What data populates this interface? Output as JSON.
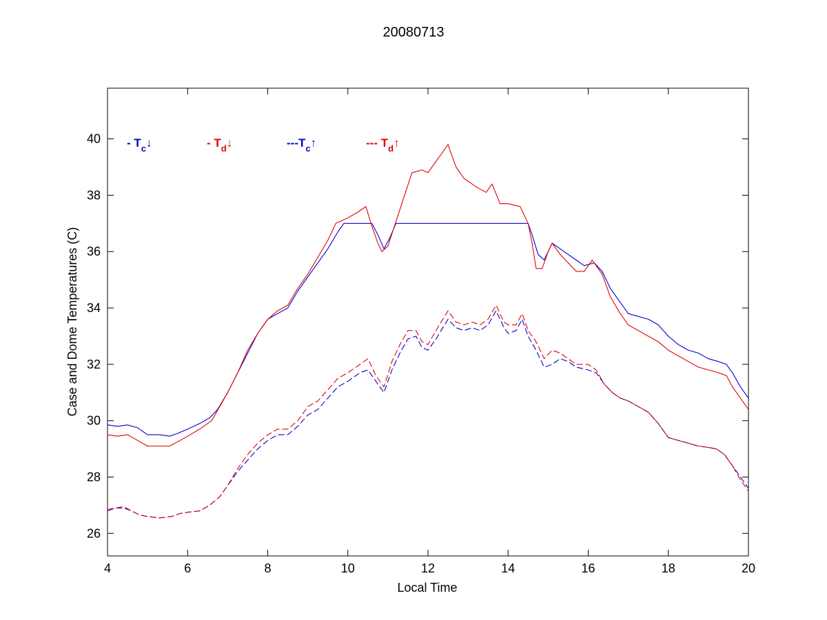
{
  "chart_data": {
    "type": "line",
    "title": "20080713",
    "xlabel": "Local Time",
    "ylabel": "Case and Dome Temperatures (C)",
    "xlim": [
      4,
      20
    ],
    "ylim": [
      25.2,
      41.8
    ],
    "xticks": [
      4,
      6,
      8,
      10,
      12,
      14,
      16,
      18,
      20
    ],
    "yticks": [
      26,
      28,
      30,
      32,
      34,
      36,
      38,
      40
    ],
    "grid": false,
    "legend_position": "top-left inside plot, single row",
    "series": [
      {
        "name": "Tc↓",
        "legend": {
          "prefix": "- ",
          "main": "T",
          "sub": "c",
          "arrow": "↓"
        },
        "color": "#0000cc",
        "style": "solid",
        "x": [
          4.0,
          4.25,
          4.5,
          4.75,
          5.0,
          5.3,
          5.55,
          5.75,
          6.0,
          6.3,
          6.55,
          6.75,
          7.0,
          7.25,
          7.5,
          7.75,
          8.0,
          8.25,
          8.5,
          8.75,
          9.0,
          9.25,
          9.5,
          9.75,
          9.9,
          10.15,
          10.6,
          10.75,
          10.9,
          11.05,
          11.2,
          12.0,
          13.0,
          14.0,
          14.5,
          14.6,
          14.75,
          14.9,
          15.1,
          15.3,
          15.5,
          15.7,
          15.9,
          16.15,
          16.35,
          16.55,
          16.8,
          17.0,
          17.25,
          17.5,
          17.75,
          18.0,
          18.25,
          18.5,
          18.75,
          19.0,
          19.25,
          19.45,
          19.6,
          19.8,
          20.0
        ],
        "y": [
          29.85,
          29.8,
          29.85,
          29.75,
          29.5,
          29.5,
          29.45,
          29.55,
          29.7,
          29.9,
          30.1,
          30.4,
          31.0,
          31.7,
          32.4,
          33.1,
          33.6,
          33.8,
          34.0,
          34.6,
          35.1,
          35.6,
          36.1,
          36.7,
          37.0,
          37.0,
          37.0,
          36.6,
          36.1,
          36.5,
          37.0,
          37.0,
          37.0,
          37.0,
          37.0,
          36.6,
          35.9,
          35.7,
          36.3,
          36.1,
          35.9,
          35.7,
          35.5,
          35.6,
          35.3,
          34.7,
          34.2,
          33.8,
          33.7,
          33.6,
          33.4,
          33.0,
          32.7,
          32.5,
          32.4,
          32.2,
          32.1,
          32.0,
          31.7,
          31.2,
          30.8
        ]
      },
      {
        "name": "Td↓",
        "legend": {
          "prefix": "- ",
          "main": "T",
          "sub": "d",
          "arrow": "↓"
        },
        "color": "#e00000",
        "style": "solid",
        "x": [
          4.0,
          4.25,
          4.5,
          4.75,
          5.0,
          5.3,
          5.55,
          5.75,
          6.0,
          6.3,
          6.6,
          6.8,
          7.0,
          7.25,
          7.5,
          7.75,
          8.0,
          8.25,
          8.5,
          8.75,
          9.0,
          9.25,
          9.5,
          9.7,
          10.0,
          10.25,
          10.45,
          10.6,
          10.75,
          10.85,
          11.0,
          11.3,
          11.6,
          11.85,
          12.0,
          12.5,
          12.7,
          12.9,
          13.2,
          13.45,
          13.6,
          13.8,
          14.0,
          14.3,
          14.5,
          14.6,
          14.7,
          14.85,
          15.0,
          15.1,
          15.3,
          15.5,
          15.7,
          15.9,
          16.1,
          16.35,
          16.55,
          16.8,
          17.0,
          17.25,
          17.5,
          17.75,
          18.0,
          18.25,
          18.5,
          18.75,
          19.0,
          19.25,
          19.45,
          19.6,
          19.8,
          20.0
        ],
        "y": [
          29.5,
          29.45,
          29.5,
          29.3,
          29.1,
          29.1,
          29.1,
          29.25,
          29.45,
          29.7,
          30.0,
          30.5,
          31.0,
          31.7,
          32.5,
          33.1,
          33.6,
          33.9,
          34.1,
          34.7,
          35.2,
          35.8,
          36.4,
          37.0,
          37.2,
          37.4,
          37.6,
          36.9,
          36.3,
          36.0,
          36.2,
          37.5,
          38.8,
          38.9,
          38.8,
          39.8,
          39.0,
          38.6,
          38.3,
          38.1,
          38.4,
          37.7,
          37.7,
          37.6,
          37.0,
          36.3,
          35.4,
          35.4,
          36.0,
          36.3,
          35.9,
          35.6,
          35.3,
          35.3,
          35.7,
          35.2,
          34.4,
          33.8,
          33.4,
          33.2,
          33.0,
          32.8,
          32.5,
          32.3,
          32.1,
          31.9,
          31.8,
          31.7,
          31.6,
          31.2,
          30.8,
          30.4
        ]
      },
      {
        "name": "Tc↑",
        "legend": {
          "prefix": "---",
          "main": "T",
          "sub": "c",
          "arrow": "↑"
        },
        "color": "#0000cc",
        "style": "dashed",
        "x": [
          4.0,
          4.2,
          4.4,
          4.6,
          4.8,
          5.0,
          5.3,
          5.6,
          5.8,
          6.0,
          6.3,
          6.55,
          6.8,
          7.0,
          7.25,
          7.5,
          7.75,
          8.0,
          8.25,
          8.5,
          8.75,
          9.0,
          9.25,
          9.5,
          9.75,
          10.0,
          10.3,
          10.5,
          10.7,
          10.9,
          11.1,
          11.3,
          11.5,
          11.7,
          11.85,
          12.0,
          12.2,
          12.5,
          12.7,
          12.9,
          13.1,
          13.3,
          13.5,
          13.7,
          13.9,
          14.0,
          14.2,
          14.35,
          14.5,
          14.7,
          14.9,
          15.1,
          15.3,
          15.5,
          15.7,
          16.0,
          16.2,
          16.4,
          16.6,
          16.8,
          17.0,
          17.25,
          17.5,
          17.75,
          18.0,
          18.25,
          18.5,
          18.75,
          19.0,
          19.2,
          19.4,
          19.6,
          19.8,
          20.0
        ],
        "y": [
          26.8,
          26.9,
          26.9,
          26.8,
          26.65,
          26.6,
          26.55,
          26.6,
          26.7,
          26.75,
          26.8,
          27.0,
          27.3,
          27.7,
          28.2,
          28.6,
          29.0,
          29.3,
          29.5,
          29.5,
          29.8,
          30.2,
          30.4,
          30.8,
          31.2,
          31.4,
          31.7,
          31.8,
          31.4,
          31.0,
          31.8,
          32.4,
          32.9,
          33.0,
          32.6,
          32.5,
          32.9,
          33.6,
          33.3,
          33.2,
          33.3,
          33.2,
          33.4,
          33.9,
          33.3,
          33.1,
          33.2,
          33.6,
          33.0,
          32.5,
          31.9,
          32.0,
          32.2,
          32.1,
          31.9,
          31.8,
          31.7,
          31.3,
          31.0,
          30.8,
          30.7,
          30.5,
          30.3,
          29.9,
          29.4,
          29.3,
          29.2,
          29.1,
          29.05,
          29.0,
          28.8,
          28.4,
          28.0,
          27.6
        ]
      },
      {
        "name": "Td↑",
        "legend": {
          "prefix": "--- ",
          "main": "T",
          "sub": "d",
          "arrow": "↑"
        },
        "color": "#e00000",
        "style": "dashed",
        "x": [
          4.0,
          4.2,
          4.4,
          4.6,
          4.8,
          5.0,
          5.3,
          5.6,
          5.8,
          6.0,
          6.3,
          6.55,
          6.8,
          7.0,
          7.25,
          7.5,
          7.75,
          8.0,
          8.25,
          8.5,
          8.75,
          9.0,
          9.25,
          9.5,
          9.75,
          10.0,
          10.3,
          10.5,
          10.7,
          10.9,
          11.1,
          11.3,
          11.5,
          11.7,
          11.85,
          12.0,
          12.2,
          12.5,
          12.7,
          12.9,
          13.1,
          13.3,
          13.5,
          13.7,
          13.9,
          14.0,
          14.2,
          14.35,
          14.5,
          14.7,
          14.9,
          15.1,
          15.3,
          15.5,
          15.7,
          16.0,
          16.2,
          16.4,
          16.6,
          16.8,
          17.0,
          17.25,
          17.5,
          17.75,
          18.0,
          18.25,
          18.5,
          18.75,
          19.0,
          19.2,
          19.4,
          19.6,
          19.8,
          20.0
        ],
        "y": [
          26.85,
          26.9,
          26.95,
          26.8,
          26.65,
          26.6,
          26.55,
          26.6,
          26.7,
          26.75,
          26.8,
          27.0,
          27.3,
          27.7,
          28.3,
          28.8,
          29.2,
          29.5,
          29.7,
          29.7,
          30.0,
          30.5,
          30.7,
          31.1,
          31.5,
          31.7,
          32.0,
          32.2,
          31.6,
          31.2,
          32.1,
          32.7,
          33.2,
          33.2,
          32.8,
          32.7,
          33.2,
          33.9,
          33.5,
          33.4,
          33.5,
          33.4,
          33.6,
          34.1,
          33.5,
          33.4,
          33.4,
          33.8,
          33.2,
          32.8,
          32.2,
          32.5,
          32.4,
          32.2,
          32.0,
          32.0,
          31.8,
          31.3,
          31.0,
          30.8,
          30.7,
          30.5,
          30.3,
          29.9,
          29.4,
          29.3,
          29.2,
          29.1,
          29.05,
          29.0,
          28.8,
          28.4,
          27.9,
          27.5
        ]
      }
    ]
  }
}
